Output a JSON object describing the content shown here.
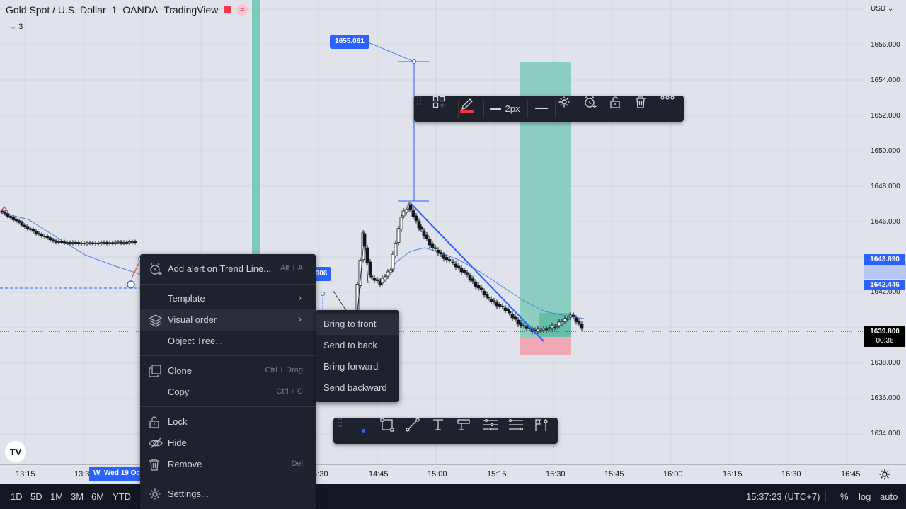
{
  "header": {
    "symbol": "Gold Spot / U.S. Dollar",
    "sep": "/",
    "interval": "1",
    "exchange": "OANDA",
    "provider": "TradingView",
    "collapse_count": "3",
    "collapse_icon": "chevron-down-icon"
  },
  "price_axis": {
    "currency": "USD",
    "labels": [
      "1656.000",
      "1654.000",
      "1652.000",
      "1650.000",
      "1648.000",
      "1646.000",
      "1642.000",
      "1638.000",
      "1636.000",
      "1634.000"
    ],
    "tag_1": {
      "value": "1643.890",
      "color": "#2962ff"
    },
    "tag_2": {
      "value": "1642.446",
      "color": "#2962ff"
    },
    "last": {
      "value": "1639.800",
      "countdown": "00:36",
      "color": "#000000"
    }
  },
  "time_axis": {
    "labels": [
      "13:15",
      "13:3",
      "14:30",
      "14:45",
      "15:00",
      "15:15",
      "15:30",
      "15:45",
      "16:00",
      "16:15",
      "16:30",
      "16:45"
    ],
    "cursor_date": "W  Wed 19 Oc",
    "settings_icon": "gear-icon"
  },
  "chart": {
    "badge_top": "1655.061",
    "badge_left": "906",
    "colors": {
      "profit": "#7ecab8",
      "loss": "#f0a8b4",
      "trendline": "#2962ff",
      "ma": "#4a7fe0"
    }
  },
  "drawing_toolbar": {
    "items": [
      {
        "icon": "drag-handle-icon"
      },
      {
        "icon": "template-icon"
      },
      {
        "icon": "pencil-color-icon"
      },
      {
        "icon": "line-width-icon",
        "label": "2px"
      },
      {
        "icon": "line-style-icon"
      },
      {
        "icon": "gear-icon"
      },
      {
        "icon": "add-alert-icon"
      },
      {
        "icon": "unlock-icon"
      },
      {
        "icon": "trash-icon"
      },
      {
        "icon": "more-icon"
      }
    ]
  },
  "context_menu": {
    "add_alert": {
      "label": "Add alert on Trend Line...",
      "shortcut": "Alt + A"
    },
    "template": {
      "label": "Template"
    },
    "visual_order": {
      "label": "Visual order"
    },
    "object_tree": {
      "label": "Object Tree..."
    },
    "clone": {
      "label": "Clone",
      "shortcut": "Ctrl + Drag"
    },
    "copy": {
      "label": "Copy",
      "shortcut": "Ctrl + C"
    },
    "lock": {
      "label": "Lock"
    },
    "hide": {
      "label": "Hide"
    },
    "remove": {
      "label": "Remove",
      "shortcut": "Del"
    },
    "settings": {
      "label": "Settings..."
    }
  },
  "submenu": {
    "items": [
      "Bring to front",
      "Send to back",
      "Bring forward",
      "Send backward"
    ]
  },
  "bottom_toolbar": {
    "icons": [
      "drag-handle-icon",
      "dot-icon",
      "rectangle-icon",
      "line-icon",
      "measure-icon",
      "position-icon",
      "range-icon",
      "fib-icon",
      "flag-pin-icon"
    ]
  },
  "bottom_bar": {
    "ranges": [
      "1D",
      "5D",
      "1M",
      "3M",
      "6M",
      "YTD"
    ],
    "clock": "15:37:23 (UTC+7)",
    "percent": "%",
    "log": "log",
    "auto": "auto"
  },
  "logo": {
    "text": "TV"
  }
}
